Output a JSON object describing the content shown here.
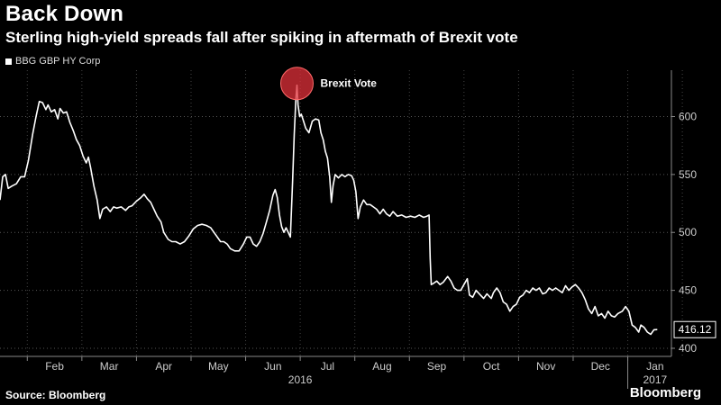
{
  "header": {
    "title": "Back Down",
    "subtitle": "Sterling high-yield spreads fall after spiking in aftermath of Brexit vote"
  },
  "legend": {
    "label": "BBG GBP HY Corp"
  },
  "footer": {
    "source": "Source: Bloomberg",
    "brand": "Bloomberg"
  },
  "colors": {
    "background": "#000000",
    "line": "#ffffff",
    "highlight": "#e0303a"
  },
  "chart_data": {
    "type": "line",
    "title": "Back Down",
    "subtitle": "Sterling high-yield spreads fall after spiking in aftermath of Brexit vote",
    "xlabel": "",
    "ylabel": "",
    "y_axis_position": "right",
    "ylim": [
      393,
      640
    ],
    "yticks": [
      400,
      450,
      500,
      550,
      600
    ],
    "grid": "dotted",
    "legend_position": "top-left",
    "x_axis": {
      "months": [
        {
          "label": "Feb",
          "x": 1.0
        },
        {
          "label": "Mar",
          "x": 2.0
        },
        {
          "label": "Apr",
          "x": 3.0
        },
        {
          "label": "May",
          "x": 4.0
        },
        {
          "label": "Jun",
          "x": 5.0
        },
        {
          "label": "Jul",
          "x": 6.0
        },
        {
          "label": "Aug",
          "x": 7.0
        },
        {
          "label": "Sep",
          "x": 8.0
        },
        {
          "label": "Oct",
          "x": 9.0
        },
        {
          "label": "Nov",
          "x": 10.0
        },
        {
          "label": "Dec",
          "x": 11.0
        },
        {
          "label": "Jan",
          "x": 12.0
        }
      ],
      "year_labels": [
        {
          "label": "2016",
          "x": 5.5
        },
        {
          "label": "2017",
          "x": 12.0
        }
      ]
    },
    "series": [
      {
        "name": "BBG GBP HY Corp",
        "points": [
          [
            0.0,
            528
          ],
          [
            0.05,
            548
          ],
          [
            0.1,
            550
          ],
          [
            0.15,
            538
          ],
          [
            0.22,
            540
          ],
          [
            0.3,
            542
          ],
          [
            0.38,
            548
          ],
          [
            0.45,
            548
          ],
          [
            0.52,
            562
          ],
          [
            0.6,
            585
          ],
          [
            0.66,
            600
          ],
          [
            0.72,
            613
          ],
          [
            0.78,
            612
          ],
          [
            0.84,
            606
          ],
          [
            0.88,
            610
          ],
          [
            0.94,
            604
          ],
          [
            1.0,
            606
          ],
          [
            1.06,
            598
          ],
          [
            1.1,
            607
          ],
          [
            1.16,
            603
          ],
          [
            1.22,
            604
          ],
          [
            1.28,
            595
          ],
          [
            1.34,
            588
          ],
          [
            1.4,
            580
          ],
          [
            1.46,
            575
          ],
          [
            1.52,
            566
          ],
          [
            1.58,
            560
          ],
          [
            1.62,
            565
          ],
          [
            1.66,
            556
          ],
          [
            1.72,
            540
          ],
          [
            1.78,
            528
          ],
          [
            1.83,
            512
          ],
          [
            1.88,
            520
          ],
          [
            1.95,
            522
          ],
          [
            2.02,
            518
          ],
          [
            2.08,
            522
          ],
          [
            2.14,
            521
          ],
          [
            2.22,
            522
          ],
          [
            2.3,
            519
          ],
          [
            2.36,
            522
          ],
          [
            2.42,
            523
          ],
          [
            2.5,
            527
          ],
          [
            2.58,
            530
          ],
          [
            2.64,
            533
          ],
          [
            2.7,
            529
          ],
          [
            2.76,
            526
          ],
          [
            2.82,
            520
          ],
          [
            2.88,
            514
          ],
          [
            2.95,
            509
          ],
          [
            3.0,
            500
          ],
          [
            3.08,
            494
          ],
          [
            3.15,
            492
          ],
          [
            3.22,
            492
          ],
          [
            3.3,
            490
          ],
          [
            3.38,
            492
          ],
          [
            3.46,
            497
          ],
          [
            3.54,
            503
          ],
          [
            3.62,
            506
          ],
          [
            3.7,
            507
          ],
          [
            3.78,
            506
          ],
          [
            3.86,
            504
          ],
          [
            3.92,
            500
          ],
          [
            3.98,
            496
          ],
          [
            4.04,
            492
          ],
          [
            4.1,
            492
          ],
          [
            4.16,
            490
          ],
          [
            4.22,
            486
          ],
          [
            4.3,
            484
          ],
          [
            4.38,
            484
          ],
          [
            4.46,
            490
          ],
          [
            4.52,
            496
          ],
          [
            4.58,
            496
          ],
          [
            4.64,
            490
          ],
          [
            4.7,
            488
          ],
          [
            4.76,
            492
          ],
          [
            4.82,
            499
          ],
          [
            4.88,
            509
          ],
          [
            4.94,
            519
          ],
          [
            5.0,
            532
          ],
          [
            5.04,
            537
          ],
          [
            5.08,
            530
          ],
          [
            5.12,
            515
          ],
          [
            5.16,
            505
          ],
          [
            5.2,
            500
          ],
          [
            5.24,
            504
          ],
          [
            5.28,
            500
          ],
          [
            5.32,
            496
          ],
          [
            5.36,
            545
          ],
          [
            5.39,
            585
          ],
          [
            5.42,
            615
          ],
          [
            5.44,
            627
          ],
          [
            5.46,
            610
          ],
          [
            5.49,
            600
          ],
          [
            5.52,
            602
          ],
          [
            5.56,
            596
          ],
          [
            5.6,
            590
          ],
          [
            5.66,
            586
          ],
          [
            5.72,
            596
          ],
          [
            5.78,
            598
          ],
          [
            5.84,
            597
          ],
          [
            5.88,
            586
          ],
          [
            5.92,
            580
          ],
          [
            5.96,
            570
          ],
          [
            6.0,
            564
          ],
          [
            6.04,
            548
          ],
          [
            6.07,
            526
          ],
          [
            6.1,
            540
          ],
          [
            6.14,
            550
          ],
          [
            6.2,
            547
          ],
          [
            6.26,
            550
          ],
          [
            6.32,
            548
          ],
          [
            6.38,
            550
          ],
          [
            6.44,
            549
          ],
          [
            6.48,
            545
          ],
          [
            6.52,
            535
          ],
          [
            6.56,
            512
          ],
          [
            6.6,
            522
          ],
          [
            6.66,
            528
          ],
          [
            6.72,
            524
          ],
          [
            6.78,
            524
          ],
          [
            6.84,
            522
          ],
          [
            6.9,
            520
          ],
          [
            6.96,
            516
          ],
          [
            7.02,
            520
          ],
          [
            7.08,
            516
          ],
          [
            7.14,
            514
          ],
          [
            7.2,
            518
          ],
          [
            7.28,
            514
          ],
          [
            7.36,
            515
          ],
          [
            7.44,
            513
          ],
          [
            7.52,
            514
          ],
          [
            7.6,
            513
          ],
          [
            7.68,
            515
          ],
          [
            7.76,
            513
          ],
          [
            7.82,
            514
          ],
          [
            7.86,
            515
          ],
          [
            7.88,
            478
          ],
          [
            7.9,
            455
          ],
          [
            7.94,
            456
          ],
          [
            8.0,
            458
          ],
          [
            8.06,
            455
          ],
          [
            8.12,
            457
          ],
          [
            8.2,
            462
          ],
          [
            8.26,
            458
          ],
          [
            8.32,
            452
          ],
          [
            8.38,
            450
          ],
          [
            8.44,
            450
          ],
          [
            8.5,
            455
          ],
          [
            8.56,
            460
          ],
          [
            8.6,
            446
          ],
          [
            8.66,
            444
          ],
          [
            8.72,
            450
          ],
          [
            8.8,
            446
          ],
          [
            8.86,
            443
          ],
          [
            8.92,
            447
          ],
          [
            9.0,
            443
          ],
          [
            9.04,
            448
          ],
          [
            9.1,
            452
          ],
          [
            9.16,
            448
          ],
          [
            9.22,
            440
          ],
          [
            9.28,
            438
          ],
          [
            9.34,
            432
          ],
          [
            9.4,
            436
          ],
          [
            9.46,
            438
          ],
          [
            9.52,
            444
          ],
          [
            9.58,
            446
          ],
          [
            9.64,
            450
          ],
          [
            9.7,
            448
          ],
          [
            9.76,
            452
          ],
          [
            9.82,
            450
          ],
          [
            9.88,
            452
          ],
          [
            9.94,
            447
          ],
          [
            10.0,
            448
          ],
          [
            10.06,
            452
          ],
          [
            10.12,
            450
          ],
          [
            10.18,
            452
          ],
          [
            10.24,
            450
          ],
          [
            10.3,
            448
          ],
          [
            10.36,
            454
          ],
          [
            10.42,
            450
          ],
          [
            10.48,
            453
          ],
          [
            10.54,
            455
          ],
          [
            10.6,
            452
          ],
          [
            10.66,
            448
          ],
          [
            10.72,
            442
          ],
          [
            10.78,
            434
          ],
          [
            10.84,
            430
          ],
          [
            10.9,
            436
          ],
          [
            10.96,
            428
          ],
          [
            11.02,
            430
          ],
          [
            11.08,
            426
          ],
          [
            11.14,
            432
          ],
          [
            11.2,
            428
          ],
          [
            11.26,
            427
          ],
          [
            11.32,
            430
          ],
          [
            11.4,
            432
          ],
          [
            11.46,
            436
          ],
          [
            11.52,
            432
          ],
          [
            11.58,
            420
          ],
          [
            11.64,
            418
          ],
          [
            11.7,
            414
          ],
          [
            11.74,
            420
          ],
          [
            11.8,
            418
          ],
          [
            11.86,
            414
          ],
          [
            11.92,
            412
          ],
          [
            11.98,
            416
          ],
          [
            12.04,
            416.12
          ]
        ]
      }
    ],
    "annotations": [
      {
        "label": "Brexit Vote",
        "x": 5.44,
        "y": 627
      }
    ],
    "last_value": {
      "label": "416.12",
      "x": 12.04,
      "y": 416.12
    }
  }
}
